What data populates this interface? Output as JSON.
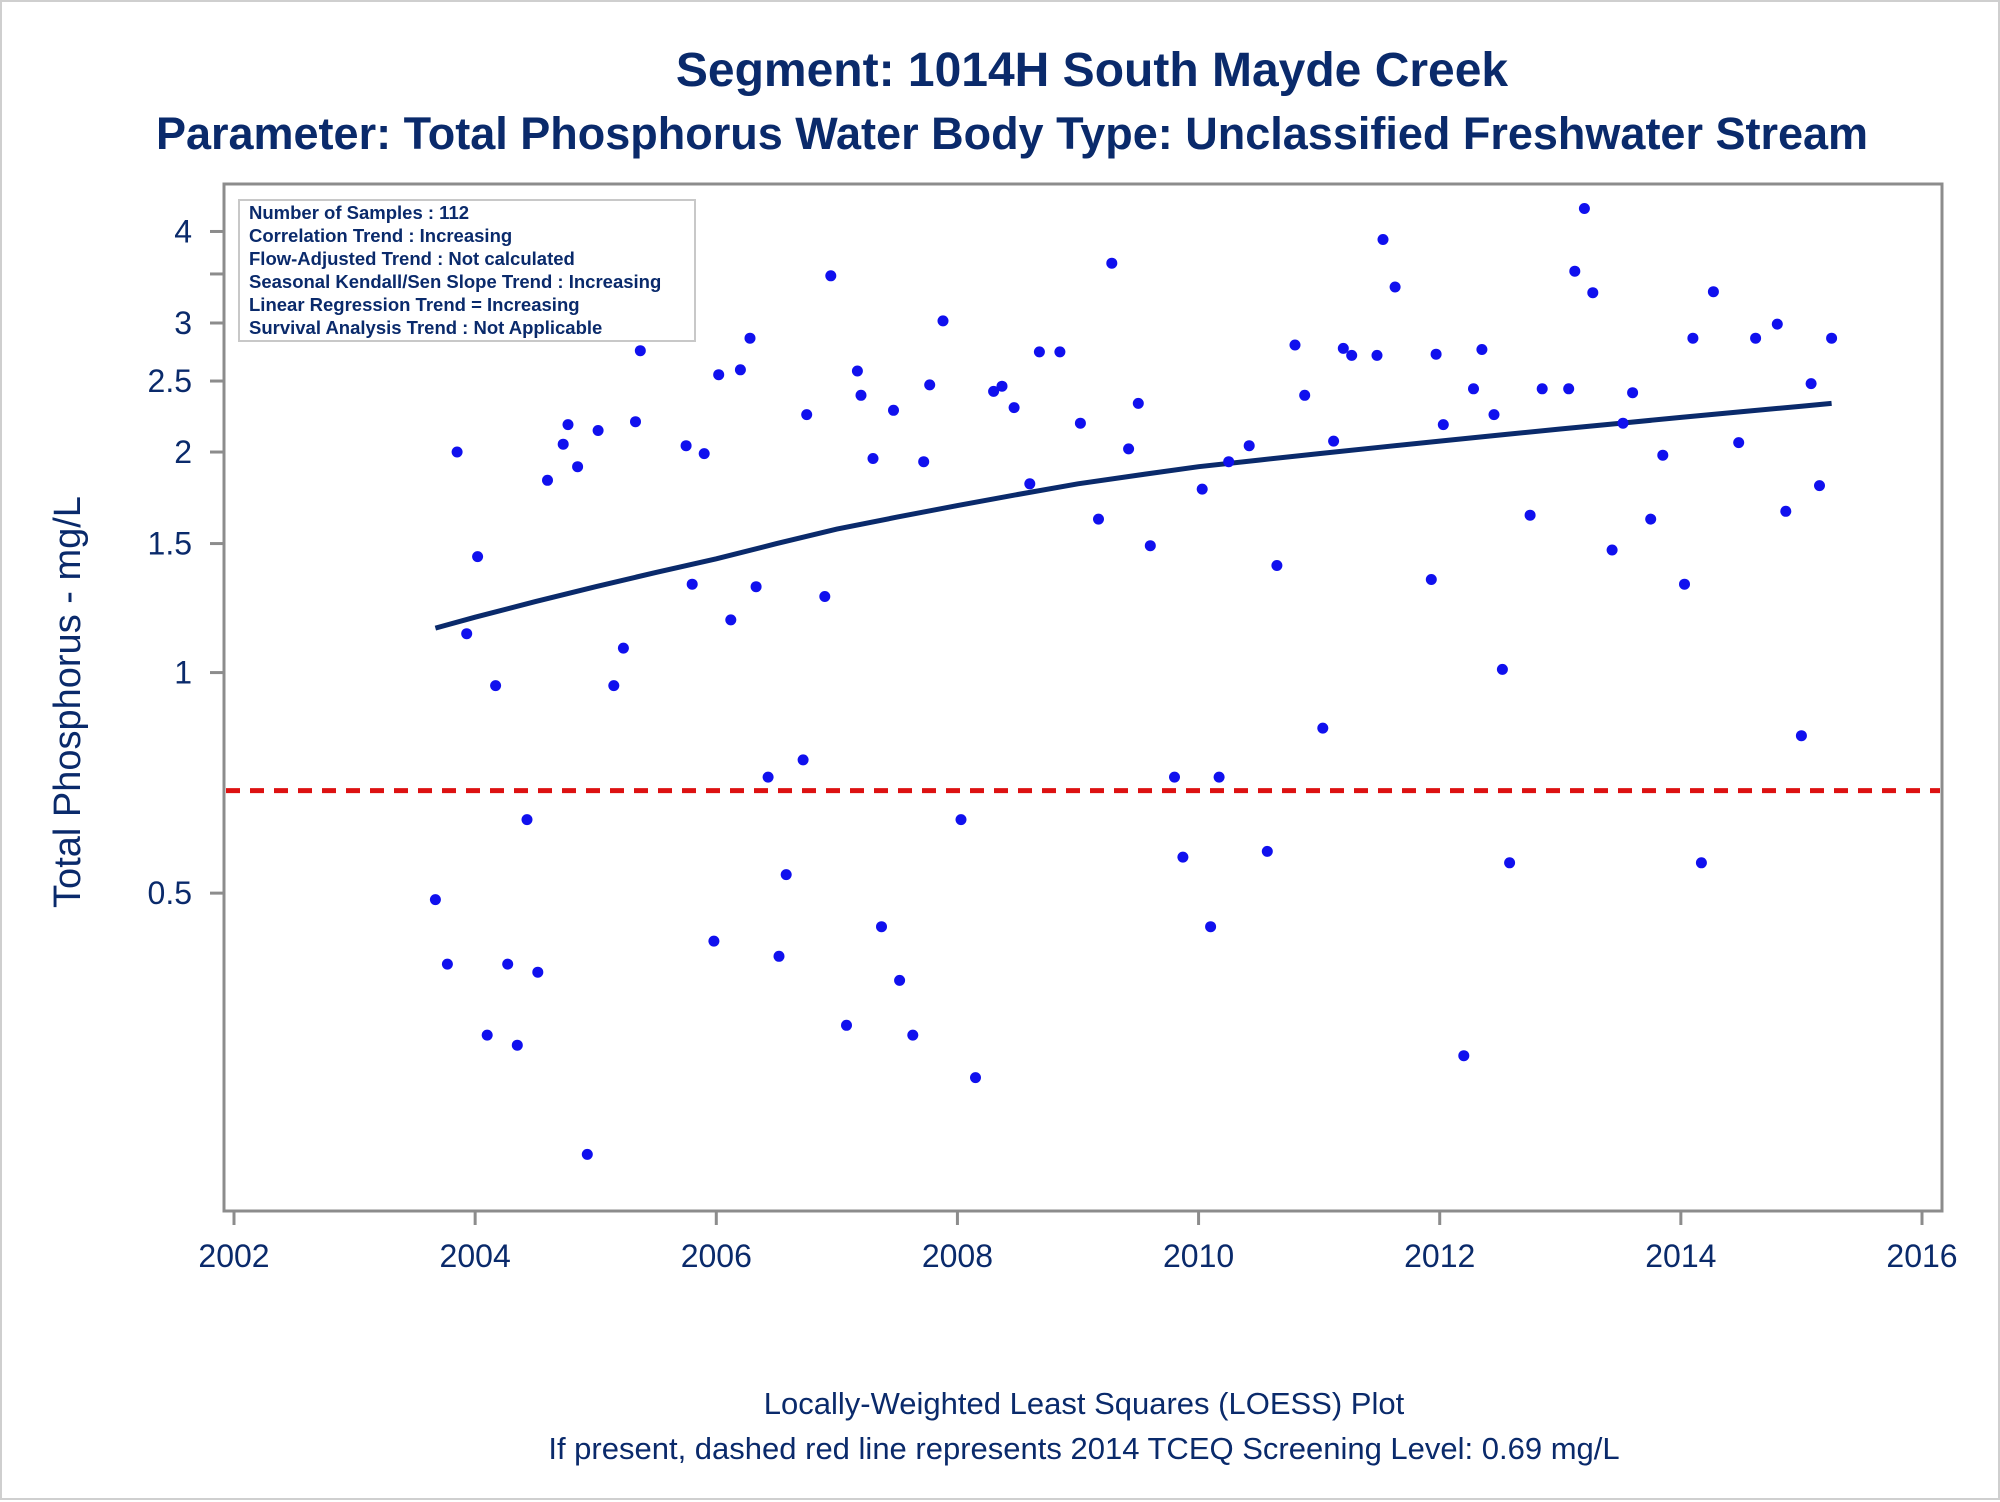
{
  "title": "Segment: 1014H  South Mayde Creek",
  "subtitle": "Parameter: Total Phosphorus   Water Body Type: Unclassified Freshwater Stream",
  "footnotes": [
    "Locally-Weighted Least Squares (LOESS) Plot",
    "If present, dashed red line represents 2014 TCEQ Screening Level: 0.69 mg/L"
  ],
  "info_box": [
    "Number of Samples : 112",
    "Correlation Trend : Increasing",
    "Flow-Adjusted Trend : Not calculated",
    "Seasonal Kendall/Sen Slope Trend : Increasing",
    "Linear Regression Trend = Increasing",
    "Survival Analysis Trend : Not Applicable"
  ],
  "colors": {
    "text": "#0a2a6b",
    "points": "#1010ee",
    "loess": "#0a2a6b",
    "screening": "#dd1111",
    "axis": "#8c8c8c"
  },
  "chart_data": {
    "type": "scatter",
    "title": "Segment: 1014H  South Mayde Creek",
    "ylabel": "Total Phosphorus - mg/L",
    "xlabel": "",
    "x_range": [
      2002,
      2016
    ],
    "y_range": [
      0.19,
      4.5
    ],
    "y_scale": "log",
    "x_ticks": [
      2002,
      2004,
      2006,
      2008,
      2010,
      2012,
      2014,
      2016
    ],
    "y_ticks": [
      0.5,
      1,
      1.5,
      2,
      2.5,
      3,
      4
    ],
    "y_tick_labels": [
      "0.5",
      "1",
      "1.5",
      "2",
      "2.5",
      "3",
      "4"
    ],
    "y_minor_ticks": [
      3.5
    ],
    "screening_level": 0.69,
    "points": [
      [
        2003.67,
        0.49
      ],
      [
        2003.77,
        0.4
      ],
      [
        2003.85,
        2.0
      ],
      [
        2003.93,
        1.13
      ],
      [
        2004.02,
        1.44
      ],
      [
        2004.1,
        0.32
      ],
      [
        2004.17,
        0.96
      ],
      [
        2004.27,
        0.4
      ],
      [
        2004.35,
        0.31
      ],
      [
        2004.43,
        0.63
      ],
      [
        2004.52,
        0.39
      ],
      [
        2004.6,
        1.83
      ],
      [
        2004.73,
        2.05
      ],
      [
        2004.77,
        2.18
      ],
      [
        2004.85,
        1.91
      ],
      [
        2004.93,
        0.22
      ],
      [
        2005.02,
        2.14
      ],
      [
        2005.15,
        0.96
      ],
      [
        2005.23,
        1.08
      ],
      [
        2005.33,
        2.2
      ],
      [
        2005.37,
        2.75
      ],
      [
        2005.75,
        2.04
      ],
      [
        2005.8,
        1.32
      ],
      [
        2005.9,
        1.99
      ],
      [
        2005.98,
        0.43
      ],
      [
        2006.02,
        2.55
      ],
      [
        2006.12,
        1.18
      ],
      [
        2006.2,
        2.59
      ],
      [
        2006.28,
        2.86
      ],
      [
        2006.33,
        1.31
      ],
      [
        2006.43,
        0.72
      ],
      [
        2006.52,
        0.41
      ],
      [
        2006.58,
        0.53
      ],
      [
        2006.72,
        0.76
      ],
      [
        2006.75,
        2.25
      ],
      [
        2006.9,
        1.27
      ],
      [
        2006.95,
        3.48
      ],
      [
        2007.08,
        0.33
      ],
      [
        2007.17,
        2.58
      ],
      [
        2007.2,
        2.39
      ],
      [
        2007.3,
        1.96
      ],
      [
        2007.37,
        0.45
      ],
      [
        2007.47,
        2.28
      ],
      [
        2007.52,
        0.38
      ],
      [
        2007.63,
        0.32
      ],
      [
        2007.72,
        1.94
      ],
      [
        2007.77,
        2.47
      ],
      [
        2007.88,
        3.02
      ],
      [
        2008.03,
        0.63
      ],
      [
        2008.15,
        0.28
      ],
      [
        2008.3,
        2.42
      ],
      [
        2008.37,
        2.46
      ],
      [
        2008.47,
        2.3
      ],
      [
        2008.6,
        1.81
      ],
      [
        2008.68,
        2.74
      ],
      [
        2008.85,
        2.74
      ],
      [
        2009.02,
        2.19
      ],
      [
        2009.17,
        1.62
      ],
      [
        2009.28,
        3.62
      ],
      [
        2009.42,
        2.02
      ],
      [
        2009.5,
        2.33
      ],
      [
        2009.6,
        1.49
      ],
      [
        2009.8,
        0.72
      ],
      [
        2009.87,
        0.56
      ],
      [
        2010.03,
        1.78
      ],
      [
        2010.1,
        0.45
      ],
      [
        2010.17,
        0.72
      ],
      [
        2010.25,
        1.94
      ],
      [
        2010.42,
        2.04
      ],
      [
        2010.57,
        0.57
      ],
      [
        2010.65,
        1.4
      ],
      [
        2010.8,
        2.8
      ],
      [
        2010.88,
        2.39
      ],
      [
        2011.03,
        0.84
      ],
      [
        2011.12,
        2.07
      ],
      [
        2011.2,
        2.77
      ],
      [
        2011.27,
        2.71
      ],
      [
        2011.48,
        2.71
      ],
      [
        2011.53,
        3.9
      ],
      [
        2011.63,
        3.36
      ],
      [
        2011.93,
        1.34
      ],
      [
        2011.97,
        2.72
      ],
      [
        2012.03,
        2.18
      ],
      [
        2012.2,
        0.3
      ],
      [
        2012.28,
        2.44
      ],
      [
        2012.35,
        2.76
      ],
      [
        2012.45,
        2.25
      ],
      [
        2012.52,
        1.01
      ],
      [
        2012.58,
        0.55
      ],
      [
        2012.75,
        1.64
      ],
      [
        2012.85,
        2.44
      ],
      [
        2013.07,
        2.44
      ],
      [
        2013.12,
        3.53
      ],
      [
        2013.2,
        4.3
      ],
      [
        2013.27,
        3.3
      ],
      [
        2013.43,
        1.47
      ],
      [
        2013.52,
        2.19
      ],
      [
        2013.6,
        2.41
      ],
      [
        2013.75,
        1.62
      ],
      [
        2013.85,
        1.98
      ],
      [
        2014.03,
        1.32
      ],
      [
        2014.1,
        2.86
      ],
      [
        2014.17,
        0.55
      ],
      [
        2014.27,
        3.31
      ],
      [
        2014.48,
        2.06
      ],
      [
        2014.62,
        2.86
      ],
      [
        2014.8,
        2.99
      ],
      [
        2014.87,
        1.66
      ],
      [
        2015.0,
        0.82
      ],
      [
        2015.08,
        2.48
      ],
      [
        2015.15,
        1.8
      ],
      [
        2015.25,
        2.86
      ]
    ],
    "loess": [
      [
        2003.67,
        1.15
      ],
      [
        2004.0,
        1.19
      ],
      [
        2004.5,
        1.25
      ],
      [
        2005.0,
        1.31
      ],
      [
        2005.5,
        1.37
      ],
      [
        2006.0,
        1.43
      ],
      [
        2006.5,
        1.5
      ],
      [
        2007.0,
        1.57
      ],
      [
        2007.5,
        1.63
      ],
      [
        2008.0,
        1.69
      ],
      [
        2008.5,
        1.75
      ],
      [
        2009.0,
        1.81
      ],
      [
        2009.5,
        1.86
      ],
      [
        2010.0,
        1.91
      ],
      [
        2010.5,
        1.95
      ],
      [
        2011.0,
        1.99
      ],
      [
        2011.5,
        2.03
      ],
      [
        2012.0,
        2.07
      ],
      [
        2012.5,
        2.11
      ],
      [
        2013.0,
        2.15
      ],
      [
        2013.5,
        2.19
      ],
      [
        2014.0,
        2.23
      ],
      [
        2014.5,
        2.27
      ],
      [
        2015.0,
        2.31
      ],
      [
        2015.25,
        2.33
      ]
    ]
  }
}
